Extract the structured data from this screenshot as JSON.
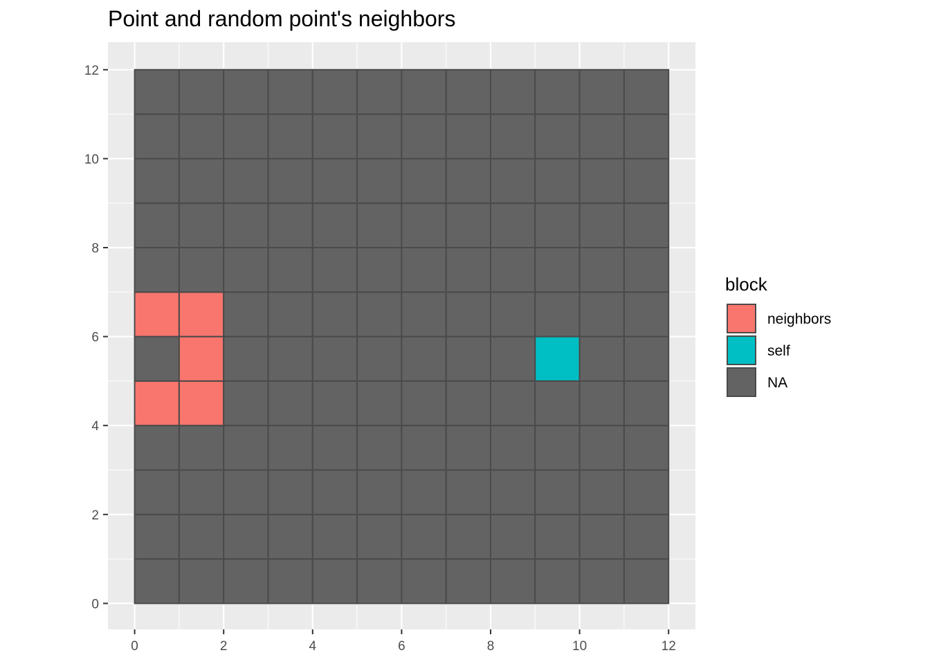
{
  "chart_data": {
    "type": "heatmap",
    "title": "Point and random point's neighbors",
    "xlabel": "",
    "ylabel": "",
    "xlim": [
      -0.6,
      12.6
    ],
    "ylim": [
      -0.6,
      12.6
    ],
    "x_ticks": [
      0,
      2,
      4,
      6,
      8,
      10,
      12
    ],
    "y_ticks": [
      0,
      2,
      4,
      6,
      8,
      10,
      12
    ],
    "grid": true,
    "grid_size": [
      12,
      12
    ],
    "cell_size": 1,
    "default_category": "NA",
    "cells": [
      {
        "x": 0,
        "y": 6,
        "block": "neighbors"
      },
      {
        "x": 1,
        "y": 6,
        "block": "neighbors"
      },
      {
        "x": 1,
        "y": 5,
        "block": "neighbors"
      },
      {
        "x": 0,
        "y": 4,
        "block": "neighbors"
      },
      {
        "x": 1,
        "y": 4,
        "block": "neighbors"
      },
      {
        "x": 9,
        "y": 5,
        "block": "self"
      }
    ],
    "legend": {
      "title": "block",
      "placement": "right",
      "entries": [
        {
          "label": "neighbors",
          "color": "#f8766d"
        },
        {
          "label": "self",
          "color": "#00bfc4"
        },
        {
          "label": "NA",
          "color": "#636363"
        }
      ]
    },
    "colors": {
      "panel_background": "#ebebeb",
      "gridline": "#ffffff",
      "cell_border": "#4a4a4a"
    }
  }
}
